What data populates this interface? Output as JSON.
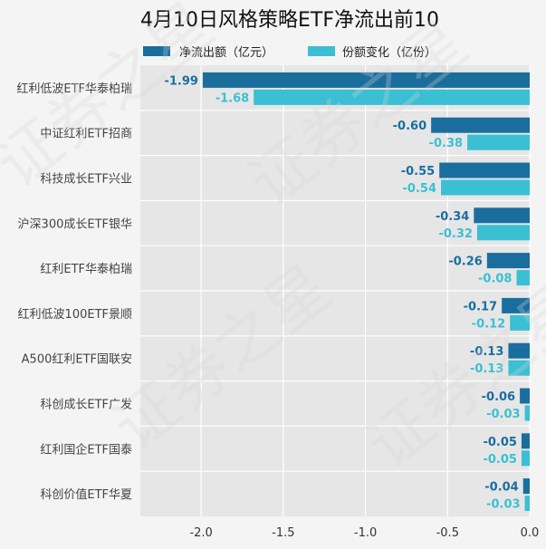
{
  "chart_data": {
    "type": "bar",
    "orientation": "horizontal",
    "title": "4月10日风格策略ETF净流出前10",
    "categories": [
      "红利低波ETF华泰柏瑞",
      "中证红利ETF招商",
      "科技成长ETF兴业",
      "沪深300成长ETF银华",
      "红利ETF华泰柏瑞",
      "红利低波100ETF景顺",
      "A500红利ETF国联安",
      "科创成长ETF广发",
      "红利国企ETF国泰",
      "科创价值ETF华夏"
    ],
    "series": [
      {
        "name": "净流出额（亿元）",
        "color": "#1a6e9e",
        "values": [
          -1.99,
          -0.6,
          -0.55,
          -0.34,
          -0.26,
          -0.17,
          -0.13,
          -0.06,
          -0.05,
          -0.04
        ],
        "labels": [
          "-1.99",
          "-0.60",
          "-0.55",
          "-0.34",
          "-0.26",
          "-0.17",
          "-0.13",
          "-0.06",
          "-0.05",
          "-0.04"
        ]
      },
      {
        "name": "份额变化（亿份）",
        "color": "#3bbfd2",
        "values": [
          -1.68,
          -0.38,
          -0.54,
          -0.32,
          -0.08,
          -0.12,
          -0.13,
          -0.03,
          -0.05,
          -0.03
        ],
        "labels": [
          "-1.68",
          "-0.38",
          "-0.54",
          "-0.32",
          "-0.08",
          "-0.12",
          "-0.13",
          "-0.03",
          "-0.05",
          "-0.03"
        ]
      }
    ],
    "x_ticks": [
      -2.0,
      -1.5,
      -1.0,
      -0.5,
      0.0
    ],
    "x_tick_labels": [
      "-2.0",
      "-1.5",
      "-1.0",
      "-0.5",
      "0.0"
    ],
    "xlim": [
      -2.37,
      0.0
    ],
    "xlabel": "",
    "ylabel": "",
    "grid": true,
    "legend_position": "top"
  },
  "watermark_text": "证券之星"
}
